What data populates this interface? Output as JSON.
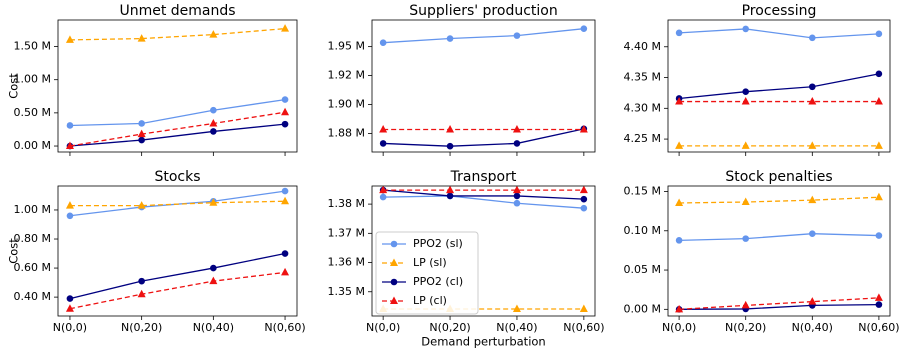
{
  "chart_data": [
    {
      "type": "line",
      "title": "Unmet demands",
      "ylabel": "Cost",
      "ylim": [
        -0.09,
        1.9
      ],
      "yticks": [
        {
          "value": 0,
          "label": "0.00 M"
        },
        {
          "value": 0.5,
          "label": "0.50 M"
        },
        {
          "value": 1.0,
          "label": "1.00 M"
        },
        {
          "value": 1.5,
          "label": "1.50 M"
        }
      ],
      "series": [
        {
          "name": "PPO2 (sl)",
          "color": "#6495ed",
          "marker": "circle",
          "dashed": false,
          "values": [
            0.31,
            0.34,
            0.54,
            0.7
          ]
        },
        {
          "name": "LP (sl)",
          "color": "#ffa500",
          "marker": "triangle",
          "dashed": true,
          "values": [
            1.6,
            1.62,
            1.68,
            1.77
          ]
        },
        {
          "name": "PPO2 (cl)",
          "color": "#000080",
          "marker": "circle",
          "dashed": false,
          "values": [
            0.0,
            0.09,
            0.22,
            0.33
          ]
        },
        {
          "name": "LP (cl)",
          "color": "#ee1111",
          "marker": "triangle",
          "dashed": true,
          "values": [
            0.0,
            0.18,
            0.34,
            0.51
          ]
        }
      ]
    },
    {
      "type": "line",
      "title": "Suppliers' production",
      "ylim": [
        1.859,
        1.973
      ],
      "yticks": [
        {
          "value": 1.875,
          "label": "1.88 M"
        },
        {
          "value": 1.9,
          "label": "1.90 M"
        },
        {
          "value": 1.925,
          "label": "1.92 M"
        },
        {
          "value": 1.95,
          "label": "1.95 M"
        }
      ],
      "series": [
        {
          "name": "PPO2 (sl)",
          "color": "#6495ed",
          "marker": "circle",
          "dashed": false,
          "values": [
            1.9534,
            1.957,
            1.9595,
            1.9655
          ]
        },
        {
          "name": "LP (sl)",
          "color": "#ffa500",
          "marker": "triangle",
          "dashed": true,
          "values": [
            null,
            null,
            null,
            null
          ]
        },
        {
          "name": "PPO2 (cl)",
          "color": "#000080",
          "marker": "circle",
          "dashed": false,
          "values": [
            1.8664,
            1.864,
            1.8664,
            1.879
          ]
        },
        {
          "name": "LP (cl)",
          "color": "#ee1111",
          "marker": "triangle",
          "dashed": true,
          "values": [
            1.8784,
            1.8784,
            1.8784,
            1.8784
          ]
        }
      ]
    },
    {
      "type": "line",
      "title": "Processing",
      "ylim": [
        4.229,
        4.4435
      ],
      "yticks": [
        {
          "value": 4.25,
          "label": "4.25 M"
        },
        {
          "value": 4.3,
          "label": "4.30 M"
        },
        {
          "value": 4.35,
          "label": "4.35 M"
        },
        {
          "value": 4.4,
          "label": "4.40 M"
        }
      ],
      "series": [
        {
          "name": "PPO2 (sl)",
          "color": "#6495ed",
          "marker": "circle",
          "dashed": false,
          "values": [
            4.4226,
            4.429,
            4.4145,
            4.421
          ]
        },
        {
          "name": "LP (sl)",
          "color": "#ffa500",
          "marker": "triangle",
          "dashed": true,
          "values": [
            4.239,
            4.239,
            4.239,
            4.239
          ]
        },
        {
          "name": "PPO2 (cl)",
          "color": "#000080",
          "marker": "circle",
          "dashed": false,
          "values": [
            4.316,
            4.327,
            4.335,
            4.356
          ]
        },
        {
          "name": "LP (cl)",
          "color": "#ee1111",
          "marker": "triangle",
          "dashed": true,
          "values": [
            4.311,
            4.311,
            4.311,
            4.311
          ]
        }
      ]
    },
    {
      "type": "line",
      "title": "Stocks",
      "ylabel": "Cost",
      "categories": [
        "N(0,0)",
        "N(0,20)",
        "N(0,40)",
        "N(0,60)"
      ],
      "ylim": [
        0.27,
        1.165
      ],
      "yticks": [
        {
          "value": 0.4,
          "label": "0.40 M"
        },
        {
          "value": 0.6,
          "label": "0.60 M"
        },
        {
          "value": 0.8,
          "label": "0.80 M"
        },
        {
          "value": 1.0,
          "label": "1.00 M"
        }
      ],
      "series": [
        {
          "name": "PPO2 (sl)",
          "color": "#6495ed",
          "marker": "circle",
          "dashed": false,
          "values": [
            0.96,
            1.02,
            1.06,
            1.13
          ]
        },
        {
          "name": "LP (sl)",
          "color": "#ffa500",
          "marker": "triangle",
          "dashed": true,
          "values": [
            1.03,
            1.03,
            1.05,
            1.06
          ]
        },
        {
          "name": "PPO2 (cl)",
          "color": "#000080",
          "marker": "circle",
          "dashed": false,
          "values": [
            0.39,
            0.51,
            0.6,
            0.7
          ]
        },
        {
          "name": "LP (cl)",
          "color": "#ee1111",
          "marker": "triangle",
          "dashed": true,
          "values": [
            0.32,
            0.42,
            0.51,
            0.57
          ]
        }
      ]
    },
    {
      "type": "line",
      "title": "Transport",
      "xlabel": "Demand perturbation",
      "legend": "lower left",
      "categories": [
        "N(0,0)",
        "N(0,20)",
        "N(0,40)",
        "N(0,60)"
      ],
      "ylim": [
        1.3417,
        1.3862
      ],
      "yticks": [
        {
          "value": 1.35,
          "label": "1.35 M"
        },
        {
          "value": 1.36,
          "label": "1.36 M"
        },
        {
          "value": 1.37,
          "label": "1.37 M"
        },
        {
          "value": 1.38,
          "label": "1.38 M"
        }
      ],
      "series": [
        {
          "name": "PPO2 (sl)",
          "color": "#6495ed",
          "marker": "circle",
          "dashed": false,
          "values": [
            1.3824,
            1.3828,
            1.3803,
            1.3786
          ]
        },
        {
          "name": "LP (sl)",
          "color": "#ffa500",
          "marker": "triangle",
          "dashed": true,
          "values": [
            1.3441,
            1.3441,
            1.3441,
            1.3441
          ]
        },
        {
          "name": "PPO2 (cl)",
          "color": "#000080",
          "marker": "circle",
          "dashed": false,
          "values": [
            1.3848,
            1.3828,
            1.3828,
            1.3817
          ]
        },
        {
          "name": "LP (cl)",
          "color": "#ee1111",
          "marker": "triangle",
          "dashed": true,
          "values": [
            1.3848,
            1.3848,
            1.3848,
            1.3848
          ]
        }
      ]
    },
    {
      "type": "line",
      "title": "Stock penalties",
      "categories": [
        "N(0,0)",
        "N(0,20)",
        "N(0,40)",
        "N(0,60)"
      ],
      "ylim": [
        -0.0085,
        0.157
      ],
      "yticks": [
        {
          "value": 0,
          "label": "0.00 M"
        },
        {
          "value": 0.05,
          "label": "0.05 M"
        },
        {
          "value": 0.1,
          "label": "0.10 M"
        },
        {
          "value": 0.15,
          "label": "0.15 M"
        }
      ],
      "series": [
        {
          "name": "PPO2 (sl)",
          "color": "#6495ed",
          "marker": "circle",
          "dashed": false,
          "values": [
            0.0878,
            0.09,
            0.0963,
            0.0939
          ]
        },
        {
          "name": "LP (sl)",
          "color": "#ffa500",
          "marker": "triangle",
          "dashed": true,
          "values": [
            0.1354,
            0.1366,
            0.139,
            0.1427
          ]
        },
        {
          "name": "PPO2 (cl)",
          "color": "#000080",
          "marker": "circle",
          "dashed": false,
          "values": [
            0.0,
            0.0005,
            0.005,
            0.006
          ]
        },
        {
          "name": "LP (cl)",
          "color": "#ee1111",
          "marker": "triangle",
          "dashed": true,
          "values": [
            0.0,
            0.005,
            0.0098,
            0.0146
          ]
        }
      ]
    }
  ]
}
